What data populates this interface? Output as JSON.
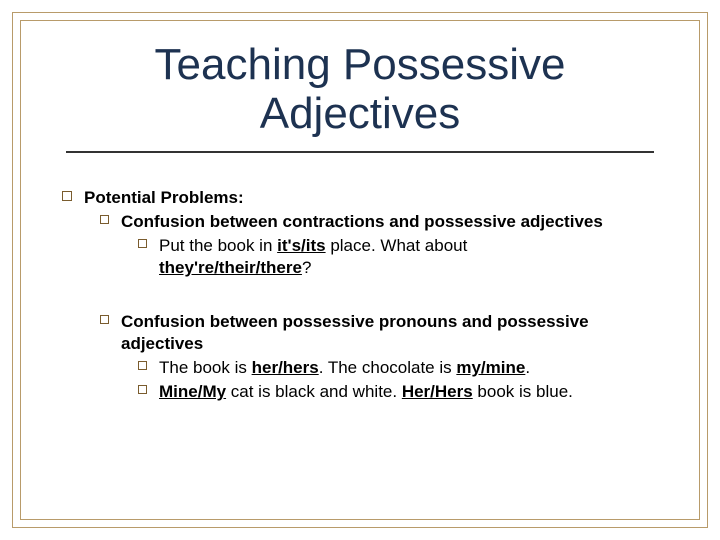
{
  "colors": {
    "frame_border": "#b89b6a",
    "title_color": "#1d3251",
    "text_color": "#000000",
    "bullet_border": "#7a5c2e",
    "divider_color": "#333333",
    "background": "#ffffff"
  },
  "typography": {
    "title_fontsize": 44,
    "body_fontsize": 17,
    "font_family": "Arial"
  },
  "title": "Teaching Possessive Adjectives",
  "heading": "Potential Problems:",
  "section1": {
    "label": "Confusion between contractions and possessive adjectives",
    "ex_pre": "Put the book in ",
    "ex_u1": "it's/its",
    "ex_mid": " place. What about ",
    "ex_u2": "they're/their/there",
    "ex_post": "?"
  },
  "section2": {
    "label": "Confusion between possessive pronouns and possessive adjectives",
    "line1_pre": "The book is ",
    "line1_u1": "her/hers",
    "line1_mid": ". The chocolate is ",
    "line1_u2": "my/mine",
    "line1_post": ".",
    "line2_u1": "Mine/My",
    "line2_mid": " cat is black and white. ",
    "line2_u2": "Her/Hers",
    "line2_post": " book is blue."
  }
}
